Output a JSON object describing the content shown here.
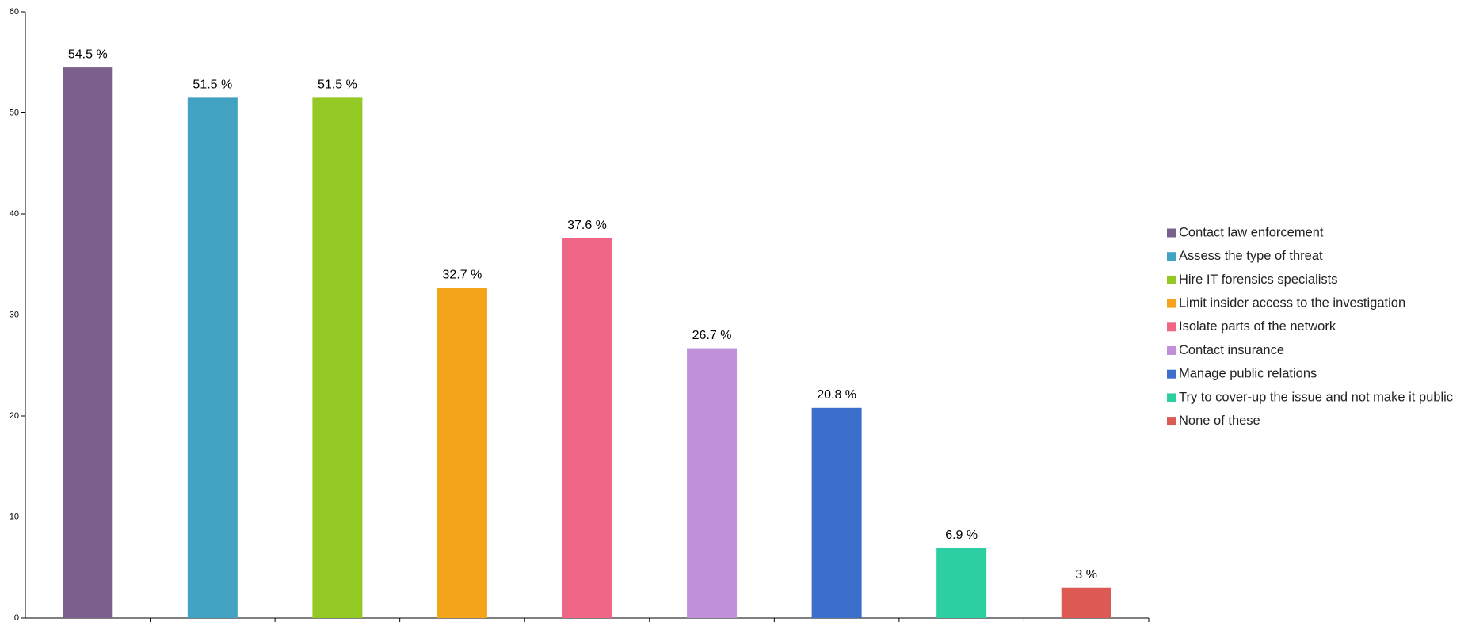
{
  "chart_data": {
    "type": "bar",
    "categories": [
      "Contact law enforcement",
      "Assess the type of threat",
      "Hire IT forensics specialists",
      "Limit insider access to the investigation",
      "Isolate parts of the network",
      "Contact insurance",
      "Manage public relations",
      "Try to cover-up the issue and not make it public",
      "None of these"
    ],
    "values": [
      54.5,
      51.5,
      51.5,
      32.7,
      37.6,
      26.7,
      20.8,
      6.9,
      3
    ],
    "value_labels": [
      "54.5 %",
      "51.5 %",
      "51.5 %",
      "32.7 %",
      "37.6 %",
      "26.7 %",
      "20.8 %",
      "6.9 %",
      "3 %"
    ],
    "colors": [
      "#7b5f8c",
      "#41a2c1",
      "#94c823",
      "#f4a41a",
      "#f06686",
      "#c190db",
      "#3c6ecb",
      "#2ccfa2",
      "#dc5a53"
    ],
    "ylim": [
      0,
      60
    ],
    "yticks": [
      0,
      10,
      20,
      30,
      40,
      50,
      60
    ],
    "grid": false,
    "legend": "right"
  }
}
